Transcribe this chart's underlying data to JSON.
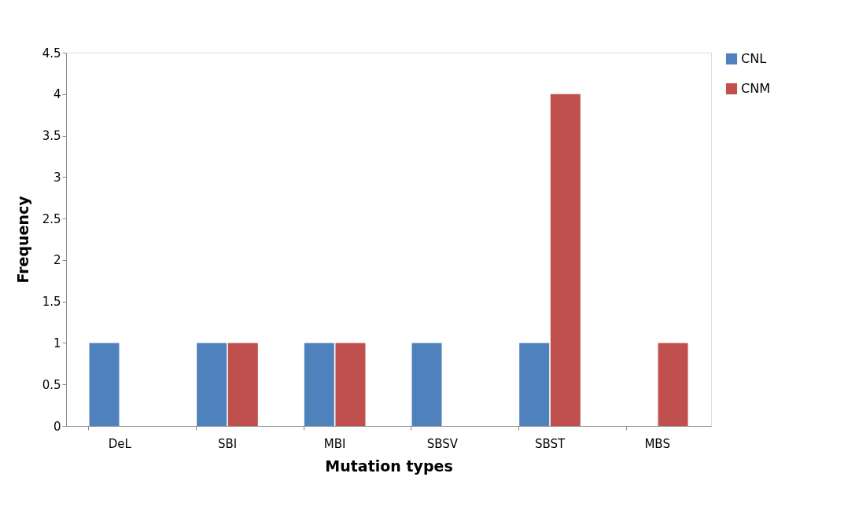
{
  "chart_data": {
    "type": "bar",
    "xlabel": "Mutation types",
    "ylabel": "Frequency",
    "categories": [
      "DeL",
      "SBI",
      "MBI",
      "SBSV",
      "SBST",
      "MBS"
    ],
    "series": [
      {
        "name": "CNL",
        "color": "#4f81bd",
        "values": [
          1,
          1,
          1,
          1,
          1,
          0
        ]
      },
      {
        "name": "CNM",
        "color": "#c0504d",
        "values": [
          0,
          1,
          1,
          0,
          4,
          1
        ]
      }
    ],
    "ylim": [
      0,
      4.5
    ],
    "yticks": [
      0,
      0.5,
      1,
      1.5,
      2,
      2.5,
      3,
      3.5,
      4,
      4.5
    ],
    "grid": false,
    "legend": "right"
  }
}
